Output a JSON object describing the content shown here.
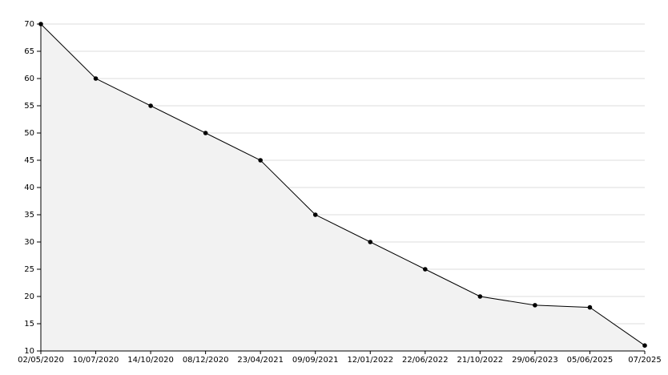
{
  "chart_data": {
    "type": "area",
    "categories": [
      "02/05/2020",
      "10/07/2020",
      "14/10/2020",
      "08/12/2020",
      "23/04/2021",
      "09/09/2021",
      "12/01/2022",
      "22/06/2022",
      "21/10/2022",
      "29/06/2023",
      "05/06/2025",
      "07/2025"
    ],
    "values": [
      70,
      60,
      55,
      50,
      45,
      35,
      30,
      25,
      20,
      18.4,
      18,
      11
    ],
    "color": "#000000",
    "fill": "#f2f2f2",
    "ylim": [
      10,
      70
    ],
    "yticks": [
      10,
      15,
      20,
      25,
      30,
      35,
      40,
      45,
      50,
      55,
      60,
      65,
      70
    ],
    "grid": true
  }
}
